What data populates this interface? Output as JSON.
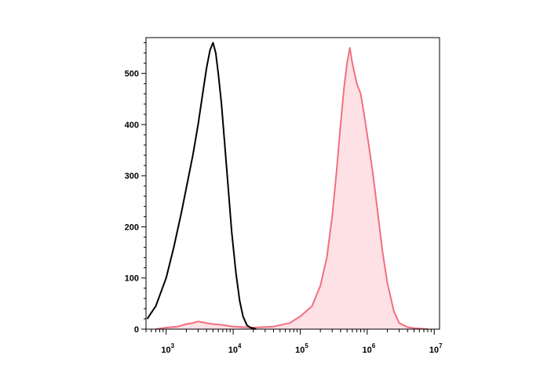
{
  "chart_data": {
    "type": "area",
    "title": "",
    "xlabel": "",
    "ylabel": "",
    "x_scale": "log",
    "xlim": [
      500,
      12000000
    ],
    "ylim": [
      0,
      570
    ],
    "x_ticks": [
      {
        "value": 1000,
        "base": "10",
        "exp": "3"
      },
      {
        "value": 10000,
        "base": "10",
        "exp": "4"
      },
      {
        "value": 100000,
        "base": "10",
        "exp": "5"
      },
      {
        "value": 1000000,
        "base": "10",
        "exp": "6"
      },
      {
        "value": 10000000,
        "base": "10",
        "exp": "7"
      }
    ],
    "y_ticks": [
      0,
      100,
      200,
      300,
      400,
      500
    ],
    "grid": false,
    "legend": "none",
    "series": [
      {
        "color": "#000000",
        "fill": "none",
        "x": [
          520,
          700,
          1000,
          1300,
          1700,
          2100,
          2500,
          3000,
          3500,
          4000,
          4500,
          5000,
          5500,
          6000,
          6700,
          7500,
          8500,
          9500,
          11000,
          12500,
          14000,
          16000,
          18000,
          22000
        ],
        "y": [
          20,
          45,
          100,
          160,
          230,
          290,
          340,
          400,
          460,
          510,
          545,
          560,
          540,
          500,
          440,
          360,
          270,
          190,
          110,
          55,
          25,
          8,
          3,
          0
        ]
      },
      {
        "color": "#f07080",
        "fill": "#fde1e4",
        "x": [
          700,
          1000,
          1500,
          2000,
          2500,
          3000,
          4000,
          5000,
          7000,
          10000,
          20000,
          40000,
          70000,
          100000,
          150000,
          200000,
          250000,
          300000,
          350000,
          400000,
          450000,
          500000,
          550000,
          600000,
          700000,
          800000,
          900000,
          1000000,
          1200000,
          1400000,
          1700000,
          2000000,
          2500000,
          3000000,
          4000000,
          5000000,
          8000000
        ],
        "y": [
          0,
          3,
          5,
          10,
          12,
          15,
          12,
          10,
          8,
          5,
          3,
          5,
          12,
          25,
          45,
          85,
          140,
          220,
          310,
          400,
          470,
          520,
          550,
          520,
          480,
          460,
          420,
          380,
          310,
          240,
          150,
          90,
          35,
          12,
          4,
          2,
          0
        ]
      }
    ]
  }
}
